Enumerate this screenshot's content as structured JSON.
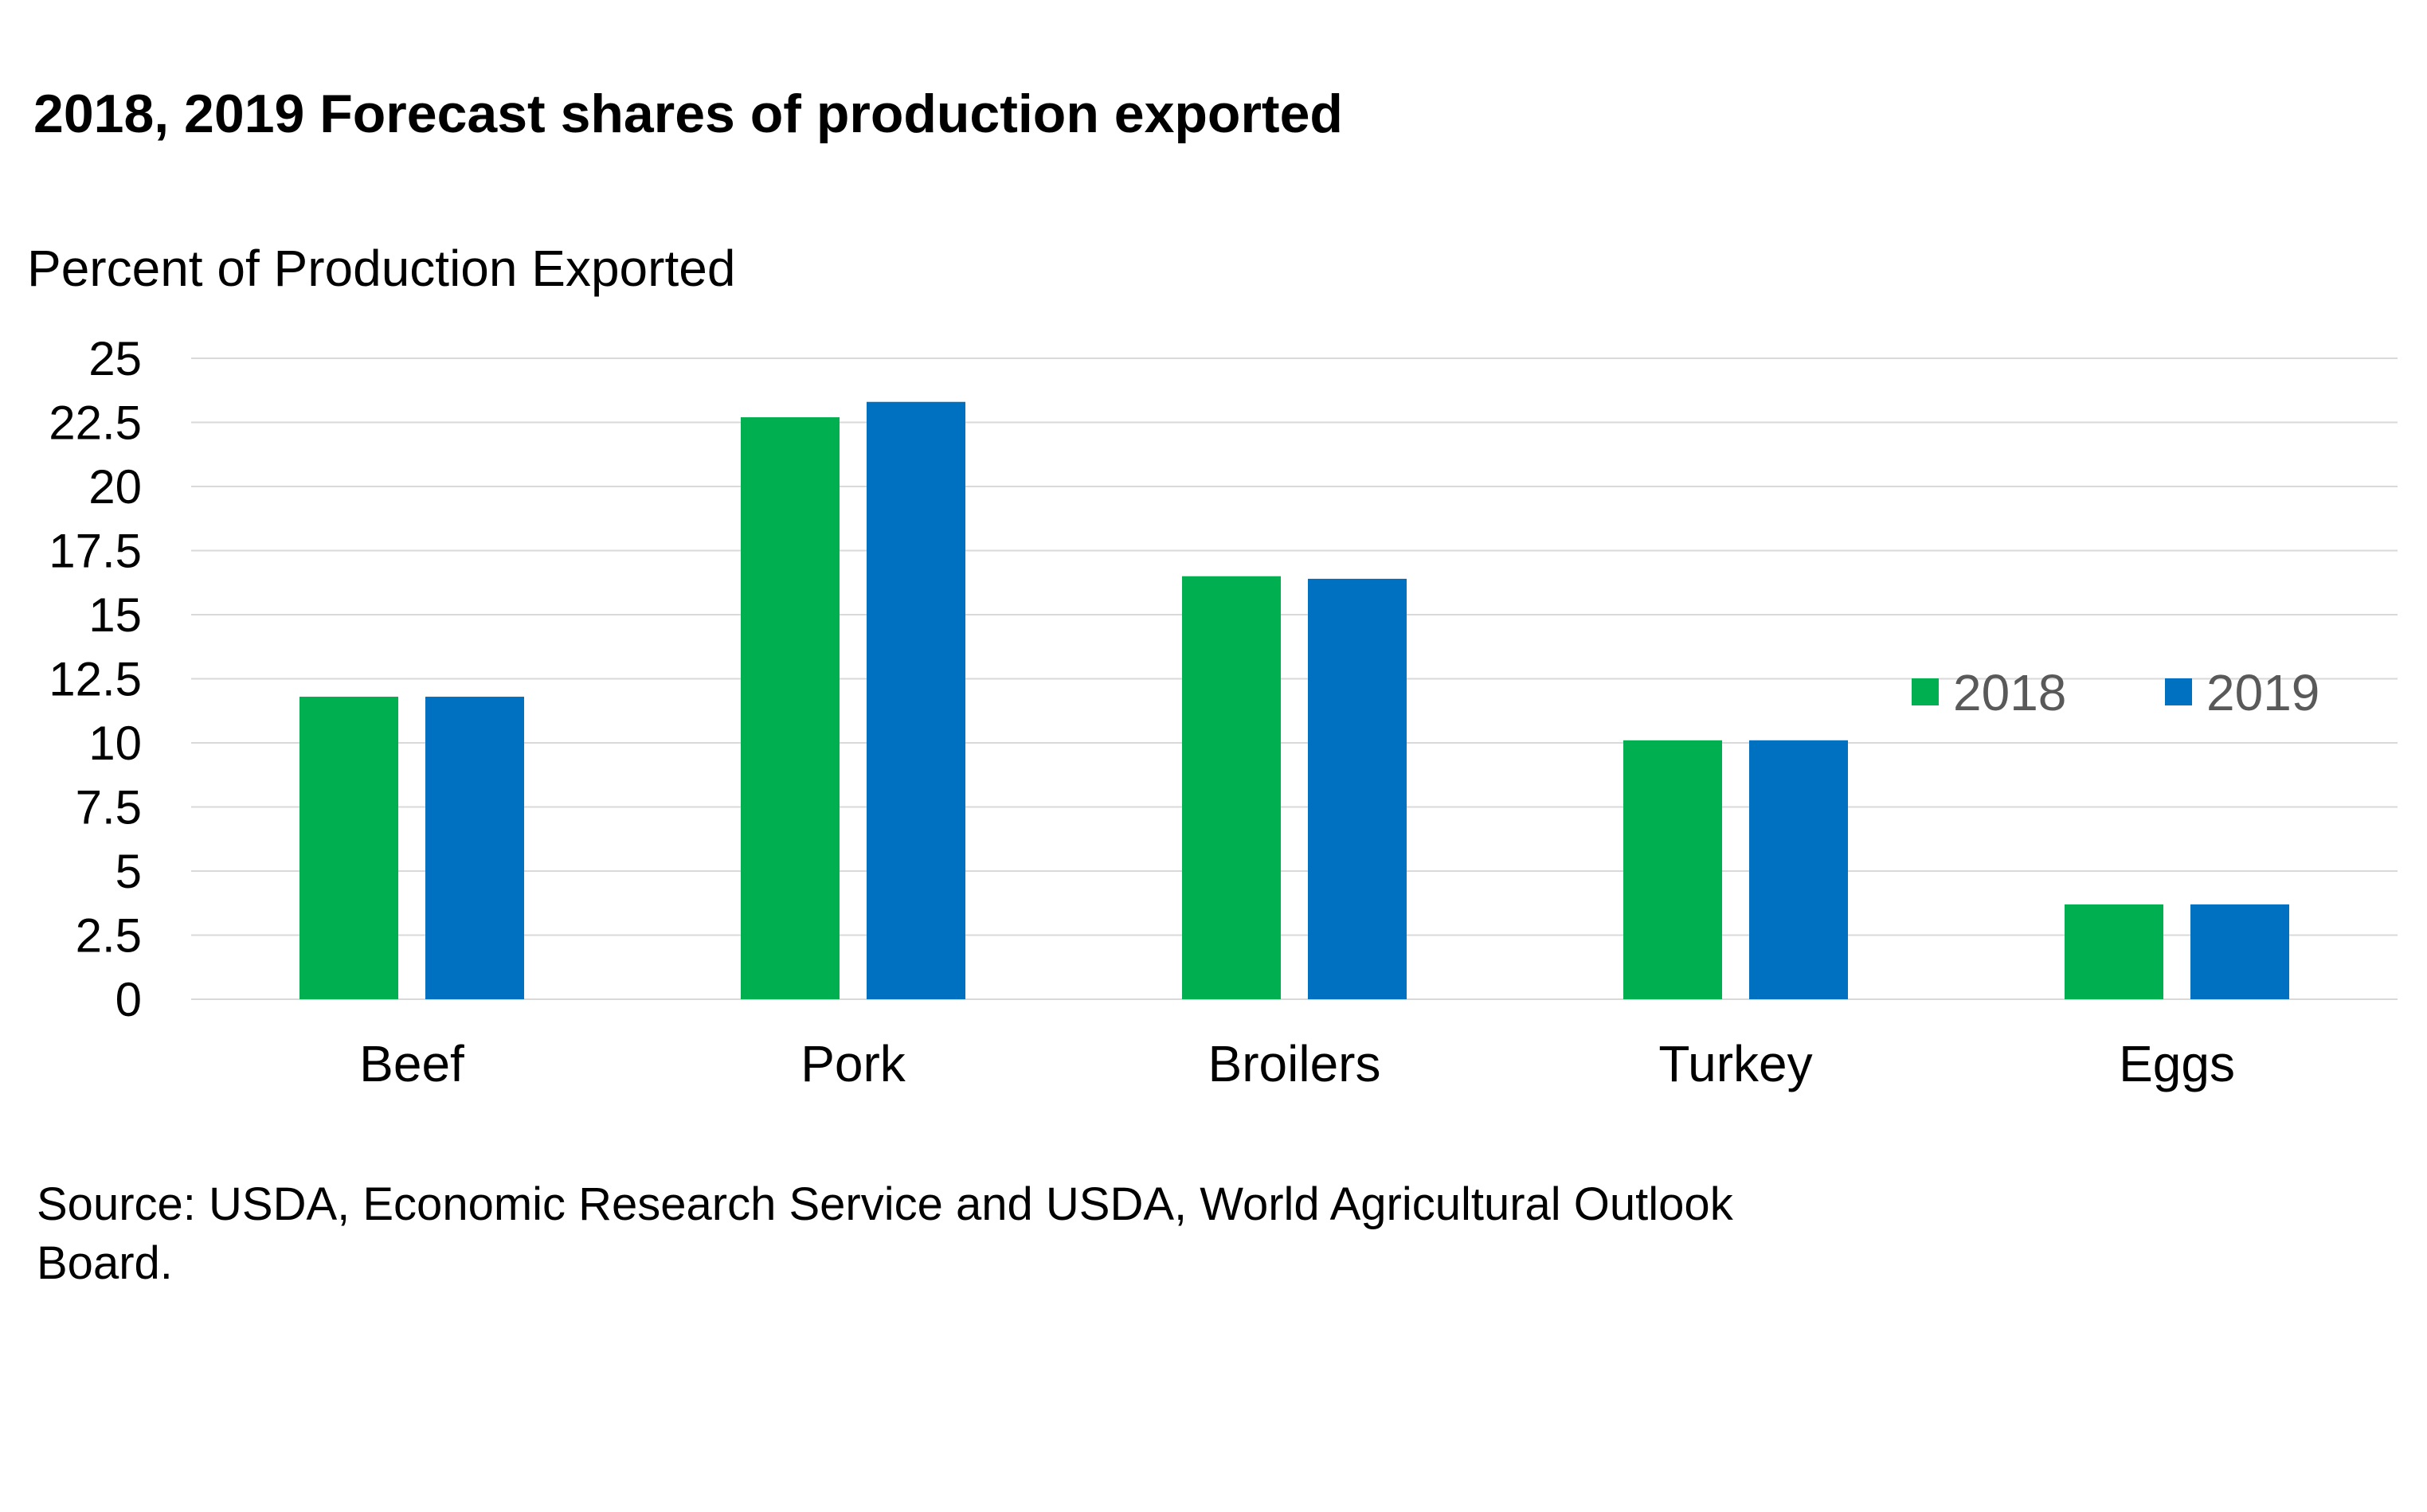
{
  "chart_data": {
    "type": "bar",
    "title": "2018, 2019 Forecast shares of production exported",
    "ylabel": "Percent of Production Exported",
    "xlabel": "",
    "categories": [
      "Beef",
      "Pork",
      "Broilers",
      "Turkey",
      "Eggs"
    ],
    "series": [
      {
        "name": "2018",
        "color": "#00b050",
        "values": [
          11.8,
          22.7,
          16.5,
          10.1,
          3.7
        ]
      },
      {
        "name": "2019",
        "color": "#0070c0",
        "values": [
          11.8,
          23.3,
          16.4,
          10.1,
          3.7
        ]
      }
    ],
    "ylim": [
      0,
      25
    ],
    "yticks": [
      "0",
      "2.5",
      "5",
      "7.5",
      "10",
      "12.5",
      "15",
      "17.5",
      "20",
      "22.5",
      "25"
    ],
    "grid": true,
    "legend_position": "right"
  },
  "source": "Source: USDA, Economic Research Service and USDA, World Agricultural Outlook Board."
}
